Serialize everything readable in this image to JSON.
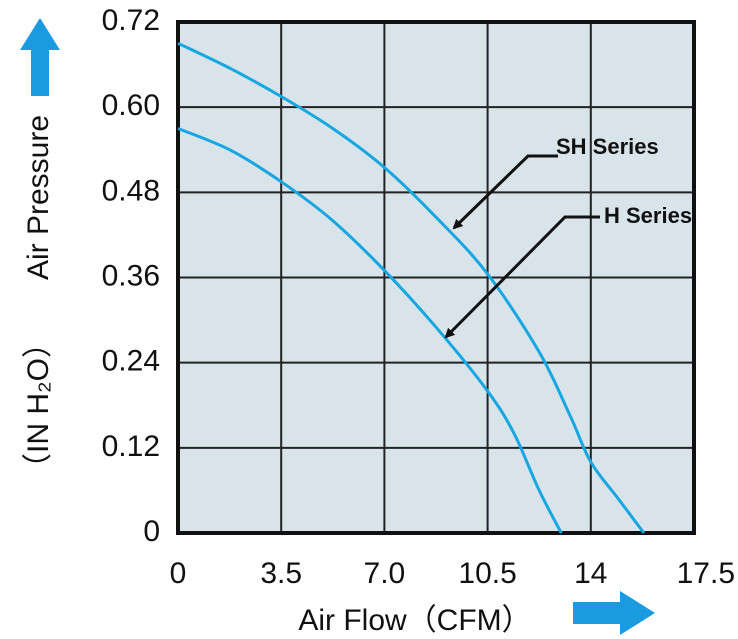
{
  "chart_data": {
    "type": "line",
    "xlabel": "Air Flow（CFM）",
    "ylabel": "Air Pressure",
    "ylabel_unit": "（IN H₂O）",
    "xlim": [
      0,
      17.5
    ],
    "ylim": [
      0,
      0.72
    ],
    "x_ticks": [
      "0",
      "3.5",
      "7.0",
      "10.5",
      "14",
      "17.5"
    ],
    "y_ticks": [
      "0",
      "0.12",
      "0.24",
      "0.36",
      "0.48",
      "0.60",
      "0.72"
    ],
    "grid": true,
    "series": [
      {
        "name": "SH Series",
        "x": [
          0,
          1.75,
          3.5,
          5.25,
          7.0,
          8.75,
          10.5,
          12.25,
          13.3,
          14.0,
          14.9,
          15.8
        ],
        "y": [
          0.69,
          0.655,
          0.615,
          0.57,
          0.515,
          0.445,
          0.365,
          0.255,
          0.165,
          0.1,
          0.05,
          0.0
        ]
      },
      {
        "name": "H Series",
        "x": [
          0,
          1.75,
          3.5,
          5.25,
          7.0,
          8.75,
          10.5,
          11.4,
          12.25,
          13.0
        ],
        "y": [
          0.57,
          0.54,
          0.495,
          0.44,
          0.37,
          0.29,
          0.2,
          0.14,
          0.06,
          0.0
        ]
      }
    ]
  },
  "colors": {
    "plot_background": "#d8e4ea",
    "grid": "#222222",
    "curve": "#16a6e0",
    "arrow": "#1a9be0",
    "annotation_arrow": "#111111"
  }
}
